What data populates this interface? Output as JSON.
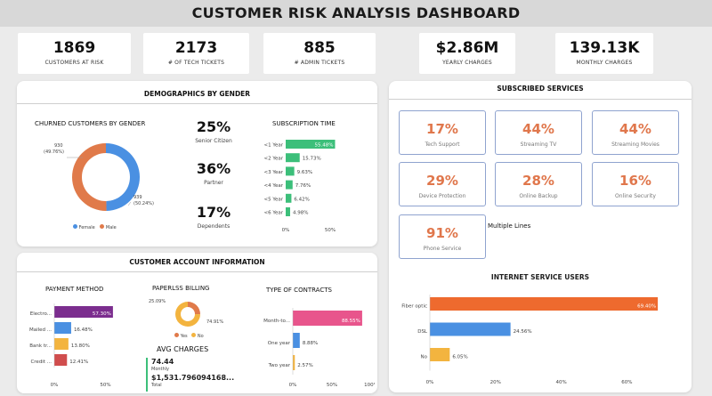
{
  "title": "CUSTOMER  RISK ANALYSIS DASHBOARD",
  "kpis": [
    {
      "value": "1869",
      "label": "CUSTOMERS AT RISK"
    },
    {
      "value": "2173",
      "label": "# OF TECH TICKETS"
    },
    {
      "value": "885",
      "label": "# ADMIN TICKETS"
    },
    {
      "value": "$2.86M",
      "label": "YEARLY CHARGES"
    },
    {
      "value": "139.13K",
      "label": "MONTHLY CHARGES"
    }
  ],
  "demographics": {
    "title": "DEMOGRAPHICS BY GENDER",
    "churn_title": "CHURNED CUSTOMERS BY GENDER",
    "female_label": "930",
    "female_pct": "(49.76%)",
    "male_label": "939",
    "male_pct": "(50.24%)",
    "legend_female": "Female",
    "legend_male": "Male",
    "colors": {
      "female": "#4a90e2",
      "male": "#e07a4a"
    },
    "stats": [
      {
        "value": "25%",
        "label": "Senior Citizen"
      },
      {
        "value": "36%",
        "label": "Partner"
      },
      {
        "value": "17%",
        "label": "Dependents"
      }
    ],
    "subscription_title": "SUBSCRIPTION TIME"
  },
  "account": {
    "title": "CUSTOMER ACCOUNT INFORMATION",
    "payment_title": "PAYMENT METHOD",
    "paperless_title": "PAPERLSS BILLING",
    "paperless_yes_label": "25.09%",
    "paperless_no_label": "74.91%",
    "legend_yes": "Yes",
    "legend_no": "No",
    "contracts_title": "TYPE OF CONTRACTS",
    "avg_title": "AVG CHARGES",
    "avg_monthly_value": "74.44",
    "avg_monthly_label": "Monthly",
    "avg_total_value": "$1,531.796094168...",
    "avg_total_label": "Total"
  },
  "services": {
    "title": "SUBSCRIBED SERVICES",
    "items": [
      {
        "pct": "17%",
        "name": "Tech Support"
      },
      {
        "pct": "44%",
        "name": "Streaming TV"
      },
      {
        "pct": "44%",
        "name": "Streaming Movies"
      },
      {
        "pct": "29%",
        "name": "Device Protection"
      },
      {
        "pct": "28%",
        "name": "Online Backup"
      },
      {
        "pct": "16%",
        "name": "Online Security"
      },
      {
        "pct": "91%",
        "name": "Phone Service"
      }
    ],
    "multiple_lines": "Multiple Lines",
    "internet_title": "INTERNET SERVICE USERS"
  },
  "chart_data": [
    {
      "type": "pie",
      "title": "CHURNED CUSTOMERS BY GENDER",
      "categories": [
        "Female",
        "Male"
      ],
      "values": [
        930,
        939
      ],
      "percent_labels": [
        "(49.76%)",
        "(50.24%)"
      ],
      "colors": [
        "#4a90e2",
        "#e07a4a"
      ]
    },
    {
      "type": "bar",
      "title": "SUBSCRIPTION TIME",
      "orientation": "horizontal",
      "categories": [
        "<1 Year",
        "<2 Year",
        "<3 Year",
        "<4 Year",
        "<5 Year",
        "<6 Year"
      ],
      "values": [
        55.48,
        15.73,
        9.63,
        7.76,
        6.42,
        4.98
      ],
      "labels": [
        "55.48%",
        "15.73%",
        "9.63%",
        "7.76%",
        "6.42%",
        "4.98%"
      ],
      "xticks": [
        "0%",
        "50%"
      ],
      "xlim": [
        0,
        60
      ],
      "color": "#3cbf7a"
    },
    {
      "type": "bar",
      "title": "PAYMENT METHOD",
      "orientation": "horizontal",
      "categories": [
        "Electro...",
        "Mailed ...",
        "Bank tr...",
        "Credit ..."
      ],
      "values": [
        57.3,
        16.48,
        13.8,
        12.41
      ],
      "labels": [
        "57.30%",
        "16.48%",
        "13.80%",
        "12.41%"
      ],
      "colors": [
        "#7b2d8e",
        "#4a90e2",
        "#f3b43f",
        "#d04d4d"
      ],
      "xticks": [
        "0%",
        "50%"
      ],
      "xlim": [
        0,
        60
      ]
    },
    {
      "type": "pie",
      "title": "PAPERLSS BILLING",
      "categories": [
        "Yes",
        "No"
      ],
      "values": [
        25.09,
        74.91
      ],
      "colors": [
        "#e07a4a",
        "#f3b43f"
      ]
    },
    {
      "type": "bar",
      "title": "TYPE OF CONTRACTS",
      "orientation": "horizontal",
      "categories": [
        "Month-to...",
        "One year",
        "Two year"
      ],
      "values": [
        88.55,
        8.88,
        2.57
      ],
      "labels": [
        "88.55%",
        "8.88%",
        "2.57%"
      ],
      "colors": [
        "#e8558c",
        "#4a90e2",
        "#f3b43f"
      ],
      "xticks": [
        "0%",
        "50%",
        "100%"
      ],
      "xlim": [
        0,
        100
      ]
    },
    {
      "type": "bar",
      "title": "INTERNET SERVICE USERS",
      "orientation": "horizontal",
      "categories": [
        "Fiber optic",
        "DSL",
        "No"
      ],
      "values": [
        69.4,
        24.56,
        6.05
      ],
      "labels": [
        "69.40%",
        "24.56%",
        "6.05%"
      ],
      "colors": [
        "#ee6a2e",
        "#4a90e2",
        "#f3b43f"
      ],
      "xticks": [
        "0%",
        "20%",
        "40%",
        "60%"
      ],
      "xlim": [
        0,
        71
      ]
    }
  ]
}
